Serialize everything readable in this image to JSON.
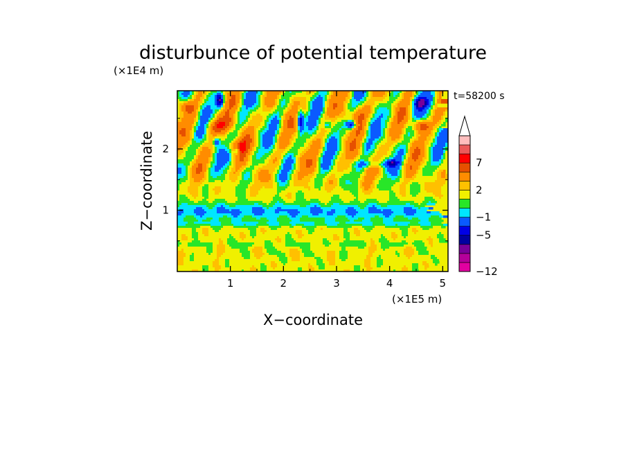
{
  "chart_data": {
    "type": "heatmap",
    "title": "disturbunce of potential temperature",
    "xlabel": "X−coordinate",
    "ylabel": "Z−coordinate",
    "x_unit": "(×1E5 m)",
    "y_unit": "(×1E4 m)",
    "time_label": "t=58200 s",
    "xlim": [
      0,
      5.1
    ],
    "ylim": [
      0,
      2.95
    ],
    "x_ticks": [
      {
        "value": 1,
        "label": "1"
      },
      {
        "value": 2,
        "label": "2"
      },
      {
        "value": 3,
        "label": "3"
      },
      {
        "value": 4,
        "label": "4"
      },
      {
        "value": 5,
        "label": "5"
      }
    ],
    "y_ticks": [
      {
        "value": 1,
        "label": "1"
      },
      {
        "value": 2,
        "label": "2"
      }
    ],
    "colorbar": {
      "levels": [
        {
          "min": -12,
          "max": -10,
          "color": "#e100a0"
        },
        {
          "min": -10,
          "max": -8,
          "color": "#b4009a"
        },
        {
          "min": -8,
          "max": -6,
          "color": "#78009a"
        },
        {
          "min": -6,
          "max": -5,
          "color": "#0000a0"
        },
        {
          "min": -5,
          "max": -3,
          "color": "#0000e6"
        },
        {
          "min": -3,
          "max": -1,
          "color": "#0a5aff"
        },
        {
          "min": -1,
          "max": 0,
          "color": "#00e6ff"
        },
        {
          "min": 0,
          "max": 1,
          "color": "#28e628"
        },
        {
          "min": 1,
          "max": 2,
          "color": "#f0f000"
        },
        {
          "min": 2,
          "max": 3,
          "color": "#ffc000"
        },
        {
          "min": 3,
          "max": 5,
          "color": "#ff8c00"
        },
        {
          "min": 5,
          "max": 7,
          "color": "#e65000"
        },
        {
          "min": 7,
          "max": 9,
          "color": "#ff0000"
        },
        {
          "min": 9,
          "max": 11,
          "color": "#eb5a5a"
        },
        {
          "min": 11,
          "max": 13,
          "color": "#ffbebe"
        }
      ],
      "tick_labels": [
        {
          "value": 7,
          "label": "7"
        },
        {
          "value": 2,
          "label": "2"
        },
        {
          "value": -1,
          "label": "−1"
        },
        {
          "value": -5,
          "label": "−5"
        },
        {
          "value": -12,
          "label": "−12"
        }
      ],
      "extend": "max"
    }
  }
}
